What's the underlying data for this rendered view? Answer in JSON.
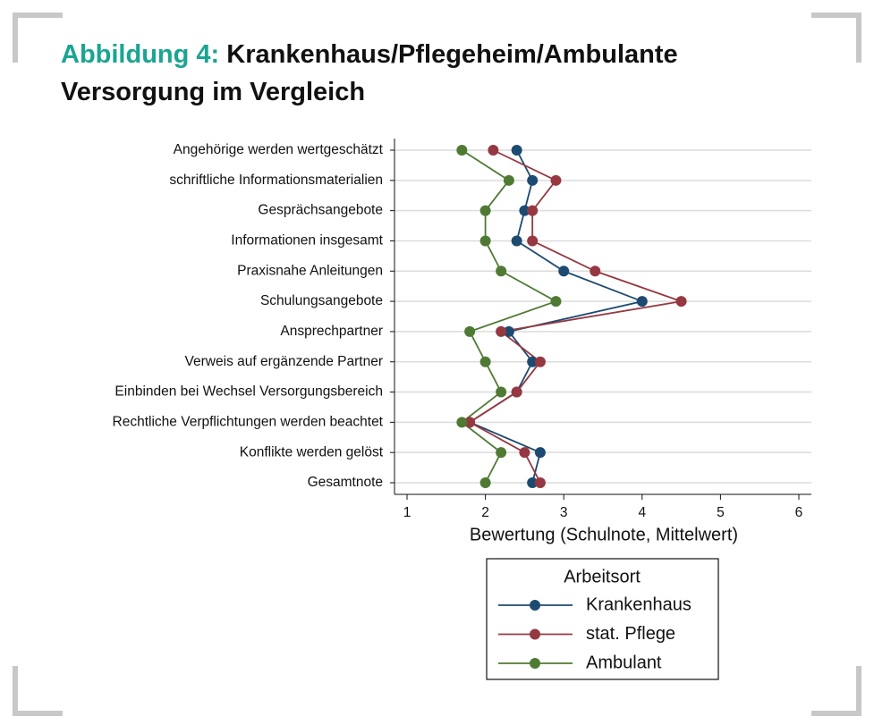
{
  "chart_data": {
    "type": "dotline",
    "figure_label": "Abbildung 4:",
    "title": "Krankenhaus/Pflegeheim/Ambulante Versorgung im Vergleich",
    "categories": [
      "Angehörige werden wertgeschätzt",
      "schriftliche Informationsmaterialien",
      "Gesprächsangebote",
      "Informationen insgesamt",
      "Praxisnahe Anleitungen",
      "Schulungsangebote",
      "Ansprechpartner",
      "Verweis auf ergänzende Partner",
      "Einbinden bei Wechsel Versorgungsbereich",
      "Rechtliche Verpflichtungen werden beachtet",
      "Konflikte werden gelöst",
      "Gesamtnote"
    ],
    "series": [
      {
        "name": "Krankenhaus",
        "color": "#1d4a70",
        "values": [
          2.4,
          2.6,
          2.5,
          2.4,
          3.0,
          4.0,
          2.3,
          2.6,
          2.4,
          1.8,
          2.7,
          2.6
        ]
      },
      {
        "name": "stat. Pflege",
        "color": "#963841",
        "values": [
          2.1,
          2.9,
          2.6,
          2.6,
          3.4,
          4.5,
          2.2,
          2.7,
          2.4,
          1.8,
          2.5,
          2.7
        ]
      },
      {
        "name": "Ambulant",
        "color": "#4f7a33",
        "values": [
          1.7,
          2.3,
          2.0,
          2.0,
          2.2,
          2.9,
          1.8,
          2.0,
          2.2,
          1.7,
          2.2,
          2.0
        ]
      }
    ],
    "xlabel": "Bewertung (Schulnote, Mittelwert)",
    "xlim": [
      0.84,
      6.16
    ],
    "xticks": [
      1,
      2,
      3,
      4,
      5,
      6
    ],
    "grid": true,
    "legend_title": "Arbeitsort"
  }
}
